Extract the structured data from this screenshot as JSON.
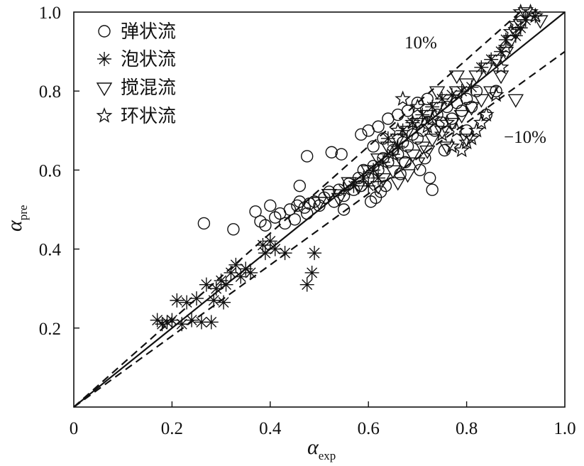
{
  "chart_data": {
    "type": "scatter",
    "title": "",
    "xlabel": "α",
    "xlabel_sub": "exp",
    "ylabel": "α",
    "ylabel_sub": "pre",
    "xlim": [
      0,
      1.0
    ],
    "ylim": [
      0,
      1.0
    ],
    "xticks": [
      0,
      0.2,
      0.4,
      0.6,
      0.8,
      1.0
    ],
    "xtick_labels": [
      "0",
      "0.2",
      "0.4",
      "0.6",
      "0.8",
      "1.0"
    ],
    "yticks": [
      0.2,
      0.4,
      0.6,
      0.8,
      1.0
    ],
    "ytick_labels": [
      "0.2",
      "0.4",
      "0.6",
      "0.8",
      "1.0"
    ],
    "grid": false,
    "legend_position": "top-left",
    "reference_lines": [
      {
        "label": "",
        "slope": 1.0,
        "style": "solid"
      },
      {
        "label": "10%",
        "slope": 1.1,
        "style": "dashed"
      },
      {
        "label": "−10%",
        "slope": 0.9,
        "style": "dashed"
      }
    ],
    "annotations": [
      "10%",
      "−10%"
    ],
    "series": [
      {
        "name": "弹状流",
        "marker": "circle",
        "points": [
          [
            0.265,
            0.465
          ],
          [
            0.325,
            0.45
          ],
          [
            0.37,
            0.495
          ],
          [
            0.38,
            0.47
          ],
          [
            0.39,
            0.46
          ],
          [
            0.4,
            0.51
          ],
          [
            0.41,
            0.48
          ],
          [
            0.42,
            0.49
          ],
          [
            0.43,
            0.465
          ],
          [
            0.44,
            0.5
          ],
          [
            0.45,
            0.475
          ],
          [
            0.455,
            0.51
          ],
          [
            0.46,
            0.52
          ],
          [
            0.47,
            0.505
          ],
          [
            0.475,
            0.49
          ],
          [
            0.48,
            0.515
          ],
          [
            0.49,
            0.52
          ],
          [
            0.5,
            0.51
          ],
          [
            0.51,
            0.53
          ],
          [
            0.52,
            0.545
          ],
          [
            0.53,
            0.52
          ],
          [
            0.54,
            0.55
          ],
          [
            0.55,
            0.535
          ],
          [
            0.56,
            0.565
          ],
          [
            0.57,
            0.55
          ],
          [
            0.58,
            0.58
          ],
          [
            0.585,
            0.56
          ],
          [
            0.59,
            0.6
          ],
          [
            0.6,
            0.58
          ],
          [
            0.605,
            0.52
          ],
          [
            0.61,
            0.61
          ],
          [
            0.615,
            0.53
          ],
          [
            0.62,
            0.6
          ],
          [
            0.625,
            0.545
          ],
          [
            0.63,
            0.63
          ],
          [
            0.635,
            0.56
          ],
          [
            0.64,
            0.62
          ],
          [
            0.65,
            0.65
          ],
          [
            0.66,
            0.64
          ],
          [
            0.665,
            0.59
          ],
          [
            0.67,
            0.67
          ],
          [
            0.675,
            0.62
          ],
          [
            0.68,
            0.66
          ],
          [
            0.69,
            0.69
          ],
          [
            0.7,
            0.68
          ],
          [
            0.705,
            0.6
          ],
          [
            0.71,
            0.7
          ],
          [
            0.715,
            0.63
          ],
          [
            0.72,
            0.72
          ],
          [
            0.725,
            0.58
          ],
          [
            0.73,
            0.55
          ],
          [
            0.735,
            0.7
          ],
          [
            0.74,
            0.74
          ],
          [
            0.75,
            0.72
          ],
          [
            0.755,
            0.65
          ],
          [
            0.76,
            0.76
          ],
          [
            0.77,
            0.73
          ],
          [
            0.78,
            0.77
          ],
          [
            0.79,
            0.75
          ],
          [
            0.8,
            0.78
          ],
          [
            0.81,
            0.76
          ],
          [
            0.82,
            0.8
          ],
          [
            0.585,
            0.69
          ],
          [
            0.6,
            0.7
          ],
          [
            0.62,
            0.71
          ],
          [
            0.64,
            0.73
          ],
          [
            0.66,
            0.74
          ],
          [
            0.68,
            0.75
          ],
          [
            0.7,
            0.77
          ],
          [
            0.72,
            0.78
          ],
          [
            0.61,
            0.66
          ],
          [
            0.63,
            0.68
          ],
          [
            0.475,
            0.635
          ],
          [
            0.525,
            0.645
          ],
          [
            0.545,
            0.64
          ],
          [
            0.46,
            0.56
          ],
          [
            0.8,
            0.7
          ],
          [
            0.84,
            0.74
          ],
          [
            0.86,
            0.8
          ],
          [
            0.55,
            0.5
          ]
        ]
      },
      {
        "name": "泡状流",
        "marker": "asterisk",
        "points": [
          [
            0.17,
            0.22
          ],
          [
            0.18,
            0.21
          ],
          [
            0.19,
            0.215
          ],
          [
            0.2,
            0.22
          ],
          [
            0.21,
            0.27
          ],
          [
            0.22,
            0.21
          ],
          [
            0.23,
            0.265
          ],
          [
            0.24,
            0.22
          ],
          [
            0.25,
            0.275
          ],
          [
            0.26,
            0.215
          ],
          [
            0.27,
            0.31
          ],
          [
            0.28,
            0.215
          ],
          [
            0.285,
            0.27
          ],
          [
            0.29,
            0.3
          ],
          [
            0.3,
            0.32
          ],
          [
            0.305,
            0.265
          ],
          [
            0.31,
            0.31
          ],
          [
            0.32,
            0.34
          ],
          [
            0.33,
            0.36
          ],
          [
            0.34,
            0.33
          ],
          [
            0.35,
            0.35
          ],
          [
            0.36,
            0.34
          ],
          [
            0.385,
            0.41
          ],
          [
            0.39,
            0.39
          ],
          [
            0.4,
            0.42
          ],
          [
            0.41,
            0.4
          ],
          [
            0.43,
            0.39
          ],
          [
            0.475,
            0.31
          ],
          [
            0.485,
            0.34
          ],
          [
            0.49,
            0.39
          ],
          [
            0.55,
            0.55
          ],
          [
            0.57,
            0.56
          ],
          [
            0.59,
            0.58
          ],
          [
            0.61,
            0.6
          ],
          [
            0.63,
            0.62
          ],
          [
            0.65,
            0.64
          ],
          [
            0.67,
            0.7
          ],
          [
            0.69,
            0.72
          ],
          [
            0.71,
            0.74
          ],
          [
            0.73,
            0.76
          ],
          [
            0.75,
            0.78
          ],
          [
            0.77,
            0.79
          ],
          [
            0.79,
            0.8
          ],
          [
            0.81,
            0.81
          ],
          [
            0.83,
            0.86
          ],
          [
            0.85,
            0.88
          ],
          [
            0.87,
            0.9
          ],
          [
            0.88,
            0.93
          ],
          [
            0.9,
            0.94
          ],
          [
            0.91,
            0.96
          ],
          [
            0.92,
            0.98
          ],
          [
            0.94,
            0.99
          ],
          [
            0.6,
            0.56
          ],
          [
            0.62,
            0.58
          ],
          [
            0.64,
            0.68
          ],
          [
            0.66,
            0.66
          ]
        ]
      },
      {
        "name": "搅混流",
        "marker": "triangle-down",
        "points": [
          [
            0.5,
            0.52
          ],
          [
            0.52,
            0.54
          ],
          [
            0.54,
            0.53
          ],
          [
            0.56,
            0.57
          ],
          [
            0.58,
            0.56
          ],
          [
            0.6,
            0.6
          ],
          [
            0.62,
            0.63
          ],
          [
            0.63,
            0.58
          ],
          [
            0.64,
            0.66
          ],
          [
            0.65,
            0.6
          ],
          [
            0.66,
            0.68
          ],
          [
            0.67,
            0.62
          ],
          [
            0.68,
            0.7
          ],
          [
            0.69,
            0.64
          ],
          [
            0.7,
            0.72
          ],
          [
            0.71,
            0.66
          ],
          [
            0.72,
            0.74
          ],
          [
            0.73,
            0.68
          ],
          [
            0.74,
            0.76
          ],
          [
            0.75,
            0.7
          ],
          [
            0.76,
            0.78
          ],
          [
            0.77,
            0.72
          ],
          [
            0.78,
            0.8
          ],
          [
            0.79,
            0.74
          ],
          [
            0.8,
            0.82
          ],
          [
            0.81,
            0.76
          ],
          [
            0.82,
            0.84
          ],
          [
            0.83,
            0.78
          ],
          [
            0.84,
            0.86
          ],
          [
            0.85,
            0.8
          ],
          [
            0.86,
            0.88
          ],
          [
            0.87,
            0.84
          ],
          [
            0.88,
            0.9
          ],
          [
            0.89,
            0.93
          ],
          [
            0.9,
            0.95
          ],
          [
            0.91,
            0.97
          ],
          [
            0.92,
            1.0
          ],
          [
            0.95,
            0.98
          ],
          [
            0.9,
            0.78
          ],
          [
            0.68,
            0.59
          ],
          [
            0.7,
            0.62
          ],
          [
            0.72,
            0.65
          ],
          [
            0.66,
            0.57
          ],
          [
            0.62,
            0.56
          ],
          [
            0.78,
            0.84
          ],
          [
            0.74,
            0.8
          ],
          [
            0.76,
            0.66
          ],
          [
            0.8,
            0.68
          ]
        ]
      },
      {
        "name": "环状流",
        "marker": "star",
        "points": [
          [
            0.67,
            0.78
          ],
          [
            0.7,
            0.76
          ],
          [
            0.73,
            0.73
          ],
          [
            0.76,
            0.72
          ],
          [
            0.78,
            0.7
          ],
          [
            0.8,
            0.67
          ],
          [
            0.82,
            0.7
          ],
          [
            0.84,
            0.74
          ],
          [
            0.86,
            0.79
          ],
          [
            0.87,
            0.86
          ],
          [
            0.88,
            0.91
          ],
          [
            0.89,
            0.95
          ],
          [
            0.9,
            0.97
          ],
          [
            0.91,
            1.0
          ],
          [
            0.93,
            1.0
          ],
          [
            0.94,
            0.99
          ],
          [
            0.66,
            0.7
          ],
          [
            0.69,
            0.72
          ],
          [
            0.72,
            0.71
          ],
          [
            0.75,
            0.69
          ],
          [
            0.77,
            0.66
          ],
          [
            0.79,
            0.65
          ],
          [
            0.81,
            0.68
          ],
          [
            0.83,
            0.72
          ]
        ]
      }
    ]
  }
}
